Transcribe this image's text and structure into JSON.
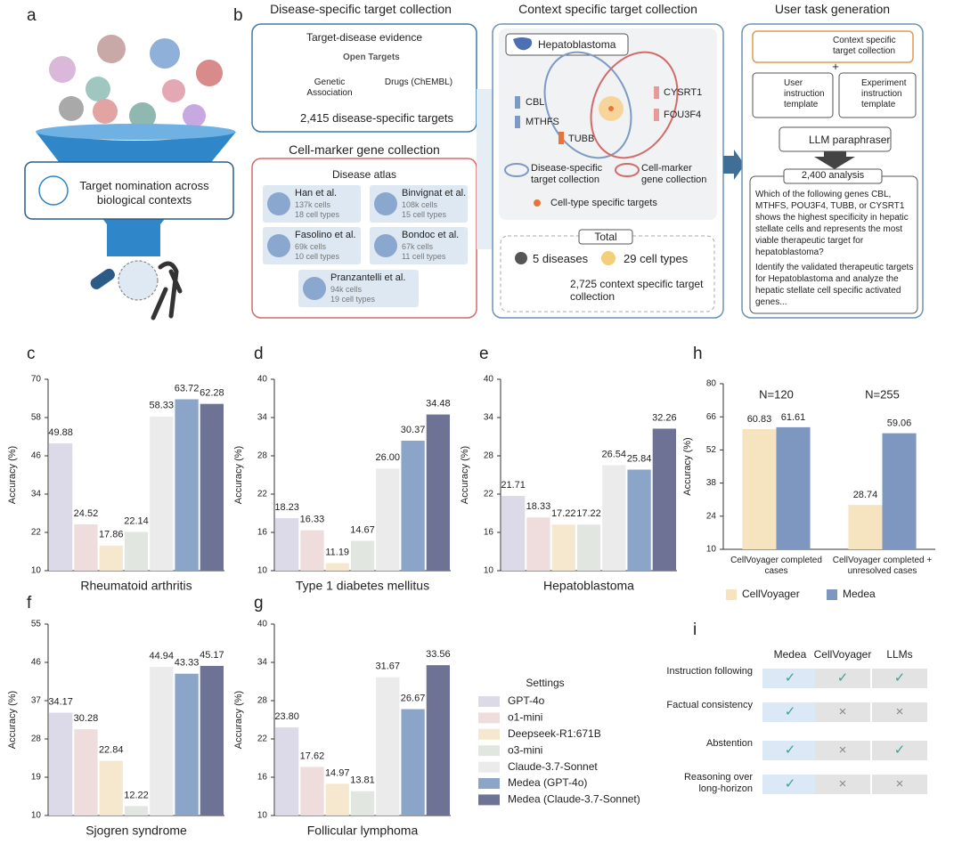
{
  "panel_labels": [
    "a",
    "b",
    "c",
    "d",
    "e",
    "f",
    "g",
    "h",
    "i"
  ],
  "panel_a": {
    "caption": "Target nomination across biological contexts"
  },
  "panel_b": {
    "disease_header": "Disease-specific target collection",
    "evidence_title": "Target-disease evidence",
    "open_targets": "Open Targets",
    "genetic": "Genetic Association",
    "drugs": "Drugs (ChEMBL)",
    "disease_targets": "2,415 disease-specific targets",
    "cellmarker_header": "Cell-marker gene collection",
    "atlas_title": "Disease atlas",
    "atlases": [
      {
        "name": "Han et al.",
        "cells": "137k cells",
        "types": "18 cell types"
      },
      {
        "name": "Binvignat et al.",
        "cells": "108k cells",
        "types": "15 cell types"
      },
      {
        "name": "Fasolino et al.",
        "cells": "69k cells",
        "types": "10 cell types"
      },
      {
        "name": "Bondoc et al.",
        "cells": "67k cells",
        "types": "11 cell types"
      },
      {
        "name": "Pranzantelli et al.",
        "cells": "94k cells",
        "types": "19 cell types"
      }
    ],
    "context_header": "Context specific target collection",
    "disease_chip": "Hepatoblastoma",
    "genes": [
      "CBL",
      "MTHFS",
      "TUBB",
      "CYSRT1",
      "FOU3F4"
    ],
    "legend": [
      "Disease-specific target collection",
      "Cell-marker gene collection",
      "Cell-type specific targets"
    ],
    "total": "Total",
    "diseases": "5 diseases",
    "cell_types": "29 cell types",
    "context_targets": "2,725 context specific target collection",
    "task_header": "User task generation",
    "context_input": "Context specific target collection",
    "plus": "+",
    "user_template": "User instruction template",
    "experiment_template": "Experiment instruction template",
    "paraphraser": "LLM paraphraser",
    "analysis": "2,400 analysis",
    "question": "Which of the following genes CBL, MTHFS, POU3F4, TUBB, or CYSRT1 shows the highest specificity in hepatic stellate cells and represents the most viable therapeutic target for hepatoblastoma?",
    "instruction": "Identify the validated therapeutic targets for Hepatoblastoma and analyze the hepatic stellate cell specific activated genes..."
  },
  "settings_legend": {
    "title": "Settings",
    "items": [
      {
        "name": "GPT-4o",
        "color": "#dcd9e8"
      },
      {
        "name": "o1-mini",
        "color": "#efdcdc"
      },
      {
        "name": "Deepseek-R1:671B",
        "color": "#f6e8cf"
      },
      {
        "name": "o3-mini",
        "color": "#e1e6e1"
      },
      {
        "name": "Claude-3.7-Sonnet",
        "color": "#ebebeb"
      },
      {
        "name": "Medea (GPT-4o)",
        "color": "#8aa5c8"
      },
      {
        "name": "Medea (Claude-3.7-Sonnet)",
        "color": "#6e7396"
      }
    ]
  },
  "chart_data": [
    {
      "type": "bar",
      "xlabel": "Rheumatoid arthritis",
      "ylabel": "Accuracy (%)",
      "ylim": [
        10,
        70
      ],
      "yticks": [
        10,
        22,
        34,
        46,
        58,
        70
      ],
      "values": [
        49.88,
        24.52,
        17.86,
        22.14,
        58.33,
        63.72,
        62.28
      ],
      "value_labels": [
        "49.88",
        "24.52",
        "17.86",
        "22.14",
        "58.33",
        "63.72",
        "62.28"
      ]
    },
    {
      "type": "bar",
      "xlabel": "Type 1 diabetes mellitus",
      "ylabel": "Accuracy (%)",
      "ylim": [
        10,
        40
      ],
      "yticks": [
        10,
        16,
        22,
        28,
        34,
        40
      ],
      "values": [
        18.23,
        16.33,
        11.19,
        14.67,
        26.0,
        30.37,
        34.48
      ],
      "value_labels": [
        "18.23",
        "16.33",
        "11.19",
        "14.67",
        "26.00",
        "30.37",
        "34.48"
      ]
    },
    {
      "type": "bar",
      "xlabel": "Hepatoblastoma",
      "ylabel": "Accuracy (%)",
      "ylim": [
        10,
        40
      ],
      "yticks": [
        10,
        16,
        22,
        28,
        34,
        40
      ],
      "values": [
        21.71,
        18.33,
        17.22,
        17.22,
        26.54,
        25.84,
        32.26
      ],
      "value_labels": [
        "21.71",
        "18.33",
        "17.22",
        "17.22",
        "26.54",
        "25.84",
        "32.26"
      ]
    },
    {
      "type": "bar",
      "xlabel": "Sjogren syndrome",
      "ylabel": "Accuracy (%)",
      "ylim": [
        10,
        55
      ],
      "yticks": [
        10,
        19,
        28,
        37,
        46,
        55
      ],
      "values": [
        34.17,
        30.28,
        22.84,
        12.22,
        44.94,
        43.33,
        45.17
      ],
      "value_labels": [
        "34.17",
        "30.28",
        "22.84",
        "12.22",
        "44.94",
        "43.33",
        "45.17"
      ]
    },
    {
      "type": "bar",
      "xlabel": "Follicular lymphoma",
      "ylabel": "Accuracy (%)",
      "ylim": [
        10,
        40
      ],
      "yticks": [
        10,
        16,
        22,
        28,
        34,
        40
      ],
      "values": [
        23.8,
        17.62,
        14.97,
        13.81,
        31.67,
        26.67,
        33.56
      ],
      "value_labels": [
        "23.80",
        "17.62",
        "14.97",
        "13.81",
        "31.67",
        "26.67",
        "33.56"
      ]
    },
    {
      "type": "grouped_bar",
      "ylabel": "Accuracy (%)",
      "ylim": [
        10,
        80
      ],
      "yticks": [
        10,
        24,
        38,
        52,
        66,
        80
      ],
      "categories": [
        "CellVoyager completed cases",
        "CellVoyager completed + unresolved cases"
      ],
      "annotations": [
        "N=120",
        "N=255"
      ],
      "series": [
        {
          "name": "CellVoyager",
          "color": "#f6e3bf",
          "values": [
            60.83,
            28.74
          ],
          "value_labels": [
            "60.83",
            "28.74"
          ]
        },
        {
          "name": "Medea",
          "color": "#7e97c0",
          "values": [
            61.61,
            59.06
          ],
          "value_labels": [
            "61.61",
            "59.06"
          ]
        }
      ]
    }
  ],
  "table_i": {
    "columns": [
      "Medea",
      "CellVoyager",
      "LLMs"
    ],
    "rows": [
      {
        "label": "Instruction following",
        "cells": [
          "✓",
          "✓",
          "✓"
        ]
      },
      {
        "label": "Factual consistency",
        "cells": [
          "✓",
          "×",
          "×"
        ]
      },
      {
        "label": "Abstention",
        "cells": [
          "✓",
          "×",
          "✓"
        ]
      },
      {
        "label": "Reasoning over long-horizon",
        "cells": [
          "✓",
          "×",
          "×"
        ]
      }
    ]
  }
}
